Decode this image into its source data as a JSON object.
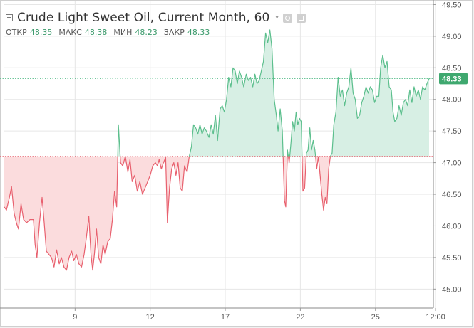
{
  "legend": {
    "title": "Crude Light Sweet Oil, Current Month, 60",
    "open_label": "ОТКР",
    "open_value": "48.35",
    "high_label": "МАКС",
    "high_value": "48.38",
    "low_label": "МИН",
    "low_value": "48.23",
    "close_label": "ЗАКР",
    "close_value": "48.33"
  },
  "colors": {
    "up": "#5cbf8d",
    "down": "#e8606e",
    "up_fill": "#d7efe4",
    "down_fill": "#fbdcdd",
    "grid": "#e6e6e6",
    "axis_text": "#555555",
    "last_price_bg": "#3fa86f"
  },
  "icons": [
    "collapse-icon",
    "chevron-down-icon",
    "gear-icon",
    "close-icon"
  ],
  "chart_data": {
    "type": "area",
    "baseline": 47.1,
    "last_price_label": "48.33",
    "last_price": 48.33,
    "ylim": [
      44.7,
      49.55
    ],
    "xlim": [
      0,
      100
    ],
    "y_ticks": [
      "45.00",
      "45.50",
      "46.00",
      "46.50",
      "47.00",
      "47.50",
      "48.00",
      "48.50",
      "49.00",
      "49.50"
    ],
    "x_ticks": [
      {
        "label": "9",
        "x": 16.5
      },
      {
        "label": "12",
        "x": 34.0
      },
      {
        "label": "17",
        "x": 51.5
      },
      {
        "label": "22",
        "x": 69.0
      },
      {
        "label": "25",
        "x": 86.5
      },
      {
        "label": "12:00",
        "x": 100.5
      }
    ],
    "series": [
      {
        "points": [
          [
            0.0,
            46.3
          ],
          [
            0.5,
            46.25
          ],
          [
            1.2,
            46.45
          ],
          [
            1.7,
            46.62
          ],
          [
            2.3,
            46.2
          ],
          [
            2.8,
            46.05
          ],
          [
            3.3,
            45.95
          ],
          [
            3.9,
            46.35
          ],
          [
            4.5,
            46.1
          ],
          [
            5.2,
            46.05
          ],
          [
            6.0,
            46.1
          ],
          [
            6.8,
            46.1
          ],
          [
            7.2,
            45.7
          ],
          [
            7.6,
            45.5
          ],
          [
            8.2,
            46.05
          ],
          [
            8.8,
            46.45
          ],
          [
            9.3,
            46.05
          ],
          [
            9.8,
            45.6
          ],
          [
            10.4,
            45.55
          ],
          [
            11.0,
            45.5
          ],
          [
            11.6,
            45.35
          ],
          [
            12.2,
            45.62
          ],
          [
            12.8,
            45.4
          ],
          [
            13.3,
            45.5
          ],
          [
            13.9,
            45.35
          ],
          [
            14.5,
            45.3
          ],
          [
            15.1,
            45.5
          ],
          [
            15.7,
            45.6
          ],
          [
            16.2,
            45.45
          ],
          [
            16.8,
            45.55
          ],
          [
            17.4,
            45.4
          ],
          [
            18.0,
            45.35
          ],
          [
            18.6,
            45.55
          ],
          [
            19.1,
            45.8
          ],
          [
            19.7,
            46.15
          ],
          [
            20.2,
            45.55
          ],
          [
            20.6,
            45.3
          ],
          [
            21.0,
            45.55
          ],
          [
            21.5,
            45.95
          ],
          [
            22.0,
            45.5
          ],
          [
            22.5,
            45.4
          ],
          [
            23.0,
            45.7
          ],
          [
            23.5,
            45.55
          ],
          [
            24.1,
            45.75
          ],
          [
            24.7,
            45.8
          ],
          [
            25.2,
            46.1
          ],
          [
            25.7,
            46.55
          ],
          [
            26.2,
            46.3
          ],
          [
            26.6,
            47.6
          ],
          [
            27.1,
            47.0
          ],
          [
            27.6,
            46.95
          ],
          [
            28.2,
            47.1
          ],
          [
            28.8,
            46.85
          ],
          [
            29.3,
            47.05
          ],
          [
            29.8,
            46.7
          ],
          [
            30.4,
            46.8
          ],
          [
            31.0,
            46.55
          ],
          [
            31.6,
            46.7
          ],
          [
            32.2,
            46.5
          ],
          [
            32.8,
            46.6
          ],
          [
            33.4,
            46.7
          ],
          [
            34.0,
            46.8
          ],
          [
            34.6,
            46.95
          ],
          [
            35.2,
            47.0
          ],
          [
            35.7,
            46.95
          ],
          [
            36.1,
            47.05
          ],
          [
            36.6,
            46.9
          ],
          [
            37.1,
            47.0
          ],
          [
            37.6,
            47.08
          ],
          [
            38.0,
            46.05
          ],
          [
            38.5,
            46.6
          ],
          [
            39.0,
            46.9
          ],
          [
            39.5,
            47.0
          ],
          [
            40.0,
            46.8
          ],
          [
            40.5,
            47.0
          ],
          [
            41.0,
            46.6
          ],
          [
            41.5,
            46.55
          ],
          [
            42.0,
            46.95
          ],
          [
            42.6,
            46.85
          ],
          [
            43.1,
            47.1
          ],
          [
            43.6,
            47.25
          ],
          [
            44.1,
            47.6
          ],
          [
            44.6,
            47.55
          ],
          [
            45.1,
            47.45
          ],
          [
            45.6,
            47.6
          ],
          [
            46.1,
            47.45
          ],
          [
            46.6,
            47.55
          ],
          [
            47.1,
            47.5
          ],
          [
            47.7,
            47.4
          ],
          [
            48.2,
            47.6
          ],
          [
            48.7,
            47.45
          ],
          [
            49.2,
            47.75
          ],
          [
            49.7,
            47.35
          ],
          [
            50.3,
            47.85
          ],
          [
            50.8,
            47.9
          ],
          [
            51.3,
            47.8
          ],
          [
            51.8,
            48.0
          ],
          [
            52.3,
            48.35
          ],
          [
            52.8,
            48.2
          ],
          [
            53.3,
            48.5
          ],
          [
            53.8,
            48.45
          ],
          [
            54.3,
            48.25
          ],
          [
            54.8,
            48.45
          ],
          [
            55.3,
            48.35
          ],
          [
            55.8,
            48.2
          ],
          [
            56.4,
            48.4
          ],
          [
            56.9,
            48.3
          ],
          [
            57.4,
            48.35
          ],
          [
            57.9,
            48.2
          ],
          [
            58.4,
            48.4
          ],
          [
            58.9,
            48.25
          ],
          [
            59.4,
            48.3
          ],
          [
            59.9,
            48.45
          ],
          [
            60.4,
            48.6
          ],
          [
            60.9,
            49.05
          ],
          [
            61.4,
            48.9
          ],
          [
            61.9,
            49.1
          ],
          [
            62.4,
            48.8
          ],
          [
            62.9,
            48.0
          ],
          [
            63.4,
            47.75
          ],
          [
            63.8,
            47.5
          ],
          [
            64.3,
            47.85
          ],
          [
            64.8,
            47.5
          ],
          [
            65.3,
            46.4
          ],
          [
            65.6,
            46.3
          ],
          [
            66.0,
            47.2
          ],
          [
            66.4,
            47.0
          ],
          [
            66.8,
            47.3
          ],
          [
            67.2,
            47.65
          ],
          [
            67.6,
            47.5
          ],
          [
            68.0,
            47.8
          ],
          [
            68.4,
            47.6
          ],
          [
            68.8,
            47.7
          ],
          [
            69.2,
            47.65
          ],
          [
            69.6,
            46.55
          ],
          [
            70.0,
            46.6
          ],
          [
            70.4,
            47.15
          ],
          [
            70.8,
            47.2
          ],
          [
            71.2,
            47.55
          ],
          [
            71.6,
            47.2
          ],
          [
            72.0,
            47.35
          ],
          [
            72.4,
            47.2
          ],
          [
            72.8,
            46.9
          ],
          [
            73.2,
            47.1
          ],
          [
            73.6,
            46.8
          ],
          [
            74.0,
            46.5
          ],
          [
            74.4,
            46.25
          ],
          [
            74.8,
            46.45
          ],
          [
            75.2,
            46.35
          ],
          [
            75.6,
            46.9
          ],
          [
            76.0,
            47.1
          ],
          [
            76.4,
            47.15
          ],
          [
            76.8,
            47.6
          ],
          [
            77.3,
            47.8
          ],
          [
            77.8,
            48.35
          ],
          [
            78.3,
            48.05
          ],
          [
            78.8,
            48.15
          ],
          [
            79.3,
            47.9
          ],
          [
            79.8,
            48.1
          ],
          [
            80.3,
            48.2
          ],
          [
            80.8,
            48.5
          ],
          [
            81.3,
            48.1
          ],
          [
            81.8,
            48.0
          ],
          [
            82.3,
            47.7
          ],
          [
            82.8,
            47.75
          ],
          [
            83.3,
            47.95
          ],
          [
            83.8,
            48.05
          ],
          [
            84.3,
            48.2
          ],
          [
            84.8,
            48.1
          ],
          [
            85.3,
            48.2
          ],
          [
            85.8,
            48.15
          ],
          [
            86.3,
            47.95
          ],
          [
            86.8,
            48.05
          ],
          [
            87.3,
            48.05
          ],
          [
            87.7,
            48.5
          ],
          [
            88.2,
            48.7
          ],
          [
            88.7,
            48.5
          ],
          [
            89.2,
            48.6
          ],
          [
            89.7,
            48.2
          ],
          [
            90.2,
            48.15
          ],
          [
            90.6,
            47.8
          ],
          [
            91.0,
            47.65
          ],
          [
            91.5,
            47.7
          ],
          [
            92.0,
            47.9
          ],
          [
            92.5,
            47.75
          ],
          [
            93.0,
            47.95
          ],
          [
            93.5,
            48.0
          ],
          [
            94.0,
            47.9
          ],
          [
            94.5,
            48.15
          ],
          [
            95.0,
            47.95
          ],
          [
            95.5,
            48.2
          ],
          [
            96.0,
            48.05
          ],
          [
            96.5,
            48.15
          ],
          [
            97.0,
            48.0
          ],
          [
            97.5,
            48.2
          ],
          [
            98.0,
            48.15
          ],
          [
            98.5,
            48.25
          ],
          [
            99.0,
            48.33
          ]
        ]
      }
    ]
  }
}
